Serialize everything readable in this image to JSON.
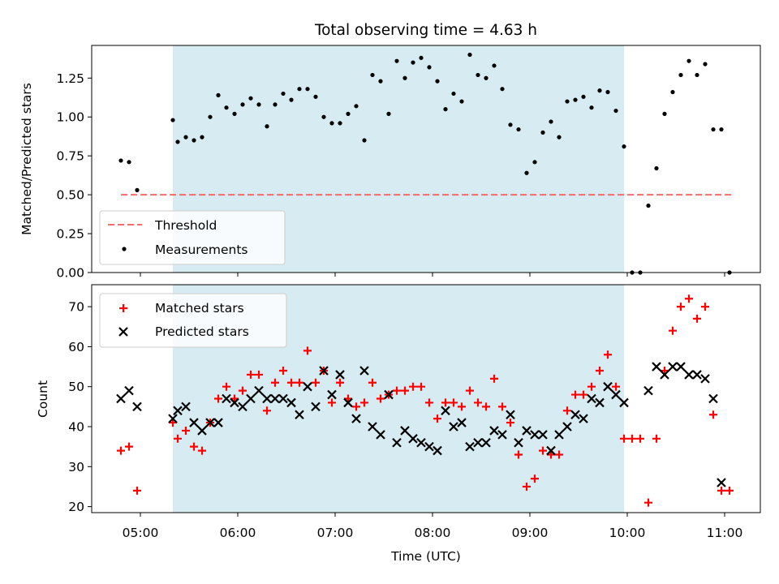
{
  "title": "Total observing time = 4.63 h",
  "colors": {
    "observing_band": "#add8e6",
    "threshold_line": "#ff6b6b",
    "measurement": "#000000",
    "matched": "#ff0000",
    "predicted": "#000000"
  },
  "chart_data": [
    {
      "type": "scatter",
      "ylabel": "Matched/Predicted stars",
      "xlabel": "",
      "x_ticks": [
        "05:00",
        "06:00",
        "07:00",
        "08:00",
        "09:00",
        "10:00",
        "11:00"
      ],
      "xlim": [
        "04:30",
        "11:22"
      ],
      "ylim": [
        0,
        1.46
      ],
      "y_ticks": [
        "0.00",
        "0.25",
        "0.50",
        "0.75",
        "1.00",
        "1.25"
      ],
      "observing_window": [
        "05:20",
        "09:58"
      ],
      "legend": {
        "position": "lower-left",
        "entries": [
          "Threshold",
          "Measurements"
        ]
      },
      "threshold": {
        "name": "Threshold",
        "y": 0.5,
        "x_range": [
          "04:48",
          "11:05"
        ]
      },
      "series": [
        {
          "name": "Measurements",
          "points": [
            [
              "04:48",
              0.72
            ],
            [
              "04:53",
              0.71
            ],
            [
              "04:58",
              0.53
            ],
            [
              "05:20",
              0.98
            ],
            [
              "05:23",
              0.84
            ],
            [
              "05:28",
              0.87
            ],
            [
              "05:33",
              0.85
            ],
            [
              "05:38",
              0.87
            ],
            [
              "05:43",
              1.0
            ],
            [
              "05:48",
              1.14
            ],
            [
              "05:53",
              1.06
            ],
            [
              "05:58",
              1.02
            ],
            [
              "06:03",
              1.08
            ],
            [
              "06:08",
              1.12
            ],
            [
              "06:13",
              1.08
            ],
            [
              "06:18",
              0.94
            ],
            [
              "06:23",
              1.08
            ],
            [
              "06:28",
              1.15
            ],
            [
              "06:33",
              1.11
            ],
            [
              "06:38",
              1.18
            ],
            [
              "06:43",
              1.18
            ],
            [
              "06:48",
              1.13
            ],
            [
              "06:53",
              1.0
            ],
            [
              "06:58",
              0.96
            ],
            [
              "07:03",
              0.96
            ],
            [
              "07:08",
              1.02
            ],
            [
              "07:13",
              1.07
            ],
            [
              "07:18",
              0.85
            ],
            [
              "07:23",
              1.27
            ],
            [
              "07:28",
              1.23
            ],
            [
              "07:33",
              1.02
            ],
            [
              "07:38",
              1.36
            ],
            [
              "07:43",
              1.25
            ],
            [
              "07:48",
              1.35
            ],
            [
              "07:53",
              1.38
            ],
            [
              "07:58",
              1.32
            ],
            [
              "08:03",
              1.23
            ],
            [
              "08:08",
              1.05
            ],
            [
              "08:13",
              1.15
            ],
            [
              "08:18",
              1.1
            ],
            [
              "08:23",
              1.4
            ],
            [
              "08:28",
              1.27
            ],
            [
              "08:33",
              1.25
            ],
            [
              "08:38",
              1.33
            ],
            [
              "08:43",
              1.18
            ],
            [
              "08:48",
              0.95
            ],
            [
              "08:53",
              0.92
            ],
            [
              "08:58",
              0.64
            ],
            [
              "09:03",
              0.71
            ],
            [
              "09:08",
              0.9
            ],
            [
              "09:13",
              0.97
            ],
            [
              "09:18",
              0.87
            ],
            [
              "09:23",
              1.1
            ],
            [
              "09:28",
              1.11
            ],
            [
              "09:33",
              1.13
            ],
            [
              "09:38",
              1.06
            ],
            [
              "09:43",
              1.17
            ],
            [
              "09:48",
              1.16
            ],
            [
              "09:53",
              1.04
            ],
            [
              "09:58",
              0.81
            ],
            [
              "10:03",
              0.0
            ],
            [
              "10:08",
              0.0
            ],
            [
              "10:13",
              0.43
            ],
            [
              "10:18",
              0.67
            ],
            [
              "10:23",
              1.02
            ],
            [
              "10:28",
              1.16
            ],
            [
              "10:33",
              1.27
            ],
            [
              "10:38",
              1.36
            ],
            [
              "10:43",
              1.27
            ],
            [
              "10:48",
              1.34
            ],
            [
              "10:53",
              0.92
            ],
            [
              "10:58",
              0.92
            ],
            [
              "11:03",
              0.0
            ]
          ]
        }
      ]
    },
    {
      "type": "scatter",
      "ylabel": "Count",
      "xlabel": "Time (UTC)",
      "x_ticks": [
        "05:00",
        "06:00",
        "07:00",
        "08:00",
        "09:00",
        "10:00",
        "11:00"
      ],
      "xlim": [
        "04:30",
        "11:22"
      ],
      "ylim": [
        18.5,
        75.5
      ],
      "y_ticks": [
        "20",
        "30",
        "40",
        "50",
        "60",
        "70"
      ],
      "observing_window": [
        "05:20",
        "09:58"
      ],
      "legend": {
        "position": "upper-left",
        "entries": [
          "Matched stars",
          "Predicted stars"
        ]
      },
      "series": [
        {
          "name": "Matched stars",
          "marker": "plus",
          "points": [
            [
              "04:48",
              34
            ],
            [
              "04:53",
              35
            ],
            [
              "04:58",
              24
            ],
            [
              "05:20",
              41
            ],
            [
              "05:23",
              37
            ],
            [
              "05:28",
              39
            ],
            [
              "05:33",
              35
            ],
            [
              "05:38",
              34
            ],
            [
              "05:43",
              41
            ],
            [
              "05:48",
              47
            ],
            [
              "05:53",
              50
            ],
            [
              "05:58",
              47
            ],
            [
              "06:03",
              49
            ],
            [
              "06:08",
              53
            ],
            [
              "06:13",
              53
            ],
            [
              "06:18",
              44
            ],
            [
              "06:23",
              51
            ],
            [
              "06:28",
              54
            ],
            [
              "06:33",
              51
            ],
            [
              "06:38",
              51
            ],
            [
              "06:43",
              59
            ],
            [
              "06:48",
              51
            ],
            [
              "06:53",
              54
            ],
            [
              "06:58",
              46
            ],
            [
              "07:03",
              51
            ],
            [
              "07:08",
              47
            ],
            [
              "07:13",
              45
            ],
            [
              "07:18",
              46
            ],
            [
              "07:23",
              51
            ],
            [
              "07:28",
              47
            ],
            [
              "07:33",
              48
            ],
            [
              "07:38",
              49
            ],
            [
              "07:43",
              49
            ],
            [
              "07:48",
              50
            ],
            [
              "07:53",
              50
            ],
            [
              "07:58",
              46
            ],
            [
              "08:03",
              42
            ],
            [
              "08:08",
              46
            ],
            [
              "08:13",
              46
            ],
            [
              "08:18",
              45
            ],
            [
              "08:23",
              49
            ],
            [
              "08:28",
              46
            ],
            [
              "08:33",
              45
            ],
            [
              "08:38",
              52
            ],
            [
              "08:43",
              45
            ],
            [
              "08:48",
              41
            ],
            [
              "08:53",
              33
            ],
            [
              "08:58",
              25
            ],
            [
              "09:03",
              27
            ],
            [
              "09:08",
              34
            ],
            [
              "09:13",
              33
            ],
            [
              "09:18",
              33
            ],
            [
              "09:23",
              44
            ],
            [
              "09:28",
              48
            ],
            [
              "09:33",
              48
            ],
            [
              "09:38",
              50
            ],
            [
              "09:43",
              54
            ],
            [
              "09:48",
              58
            ],
            [
              "09:53",
              50
            ],
            [
              "09:58",
              37
            ],
            [
              "10:03",
              37
            ],
            [
              "10:08",
              37
            ],
            [
              "10:13",
              21
            ],
            [
              "10:18",
              37
            ],
            [
              "10:23",
              54
            ],
            [
              "10:28",
              64
            ],
            [
              "10:33",
              70
            ],
            [
              "10:38",
              72
            ],
            [
              "10:43",
              67
            ],
            [
              "10:48",
              70
            ],
            [
              "10:53",
              43
            ],
            [
              "10:58",
              24
            ],
            [
              "11:03",
              24
            ]
          ]
        },
        {
          "name": "Predicted stars",
          "marker": "x",
          "points": [
            [
              "04:48",
              47
            ],
            [
              "04:53",
              49
            ],
            [
              "04:58",
              45
            ],
            [
              "05:20",
              42
            ],
            [
              "05:23",
              44
            ],
            [
              "05:28",
              45
            ],
            [
              "05:33",
              41
            ],
            [
              "05:38",
              39
            ],
            [
              "05:43",
              41
            ],
            [
              "05:48",
              41
            ],
            [
              "05:53",
              47
            ],
            [
              "05:58",
              46
            ],
            [
              "06:03",
              45
            ],
            [
              "06:08",
              47
            ],
            [
              "06:13",
              49
            ],
            [
              "06:18",
              47
            ],
            [
              "06:23",
              47
            ],
            [
              "06:28",
              47
            ],
            [
              "06:33",
              46
            ],
            [
              "06:38",
              43
            ],
            [
              "06:43",
              50
            ],
            [
              "06:48",
              45
            ],
            [
              "06:53",
              54
            ],
            [
              "06:58",
              48
            ],
            [
              "07:03",
              53
            ],
            [
              "07:08",
              46
            ],
            [
              "07:13",
              42
            ],
            [
              "07:18",
              54
            ],
            [
              "07:23",
              40
            ],
            [
              "07:28",
              38
            ],
            [
              "07:33",
              48
            ],
            [
              "07:38",
              36
            ],
            [
              "07:43",
              39
            ],
            [
              "07:48",
              37
            ],
            [
              "07:53",
              36
            ],
            [
              "07:58",
              35
            ],
            [
              "08:03",
              34
            ],
            [
              "08:08",
              44
            ],
            [
              "08:13",
              40
            ],
            [
              "08:18",
              41
            ],
            [
              "08:23",
              35
            ],
            [
              "08:28",
              36
            ],
            [
              "08:33",
              36
            ],
            [
              "08:38",
              39
            ],
            [
              "08:43",
              38
            ],
            [
              "08:48",
              43
            ],
            [
              "08:53",
              36
            ],
            [
              "08:58",
              39
            ],
            [
              "09:03",
              38
            ],
            [
              "09:08",
              38
            ],
            [
              "09:13",
              34
            ],
            [
              "09:18",
              38
            ],
            [
              "09:23",
              40
            ],
            [
              "09:28",
              43
            ],
            [
              "09:33",
              42
            ],
            [
              "09:38",
              47
            ],
            [
              "09:43",
              46
            ],
            [
              "09:48",
              50
            ],
            [
              "09:53",
              48
            ],
            [
              "09:58",
              46
            ],
            [
              "10:13",
              49
            ],
            [
              "10:18",
              55
            ],
            [
              "10:23",
              53
            ],
            [
              "10:28",
              55
            ],
            [
              "10:33",
              55
            ],
            [
              "10:38",
              53
            ],
            [
              "10:43",
              53
            ],
            [
              "10:48",
              52
            ],
            [
              "10:53",
              47
            ],
            [
              "10:58",
              26
            ]
          ]
        }
      ]
    }
  ]
}
